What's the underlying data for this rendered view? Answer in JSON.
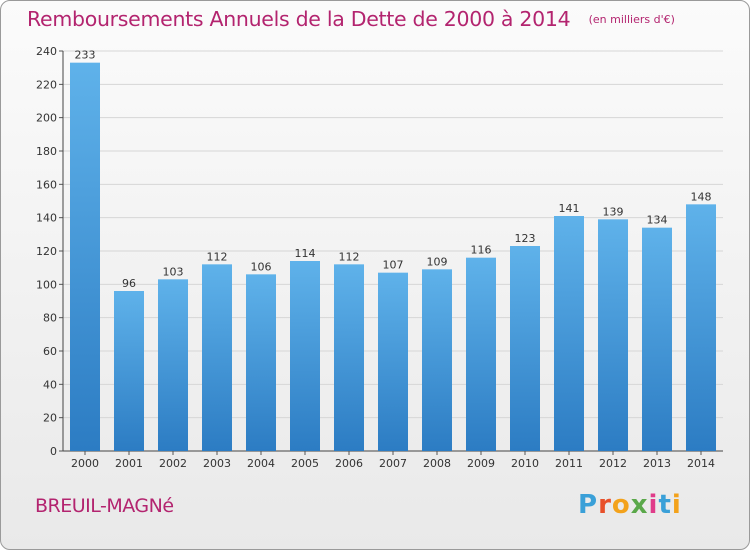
{
  "header": {
    "title": "Remboursements Annuels de la Dette de 2000 à 2014",
    "unit": "(en milliers d'€)"
  },
  "footer": {
    "commune": "BREUIL-MAGNé",
    "logo_letters": [
      "P",
      "r",
      "o",
      "x",
      "i",
      "t",
      "i"
    ],
    "logo_colors": [
      "#3aa0d8",
      "#e8502a",
      "#f3a21b",
      "#5aa84a",
      "#e03c8a",
      "#3aa0d8",
      "#f3a21b"
    ]
  },
  "colors": {
    "bar_top": "#5fb2ea",
    "bar_bottom": "#2c7cc3",
    "title": "#b3246f",
    "grid": "#d6d6d6"
  },
  "chart_data": {
    "type": "bar",
    "title": "Remboursements Annuels de la Dette de 2000 à 2014",
    "ylabel": "en milliers d'€",
    "xlabel": "",
    "categories": [
      "2000",
      "2001",
      "2002",
      "2003",
      "2004",
      "2005",
      "2006",
      "2007",
      "2008",
      "2009",
      "2010",
      "2011",
      "2012",
      "2013",
      "2014"
    ],
    "values": [
      233,
      96,
      103,
      112,
      106,
      114,
      112,
      107,
      109,
      116,
      123,
      141,
      139,
      134,
      148
    ],
    "ylim": [
      0,
      240
    ],
    "yticks": [
      0,
      20,
      40,
      60,
      80,
      100,
      120,
      140,
      160,
      180,
      200,
      220,
      240
    ],
    "grid": true
  }
}
